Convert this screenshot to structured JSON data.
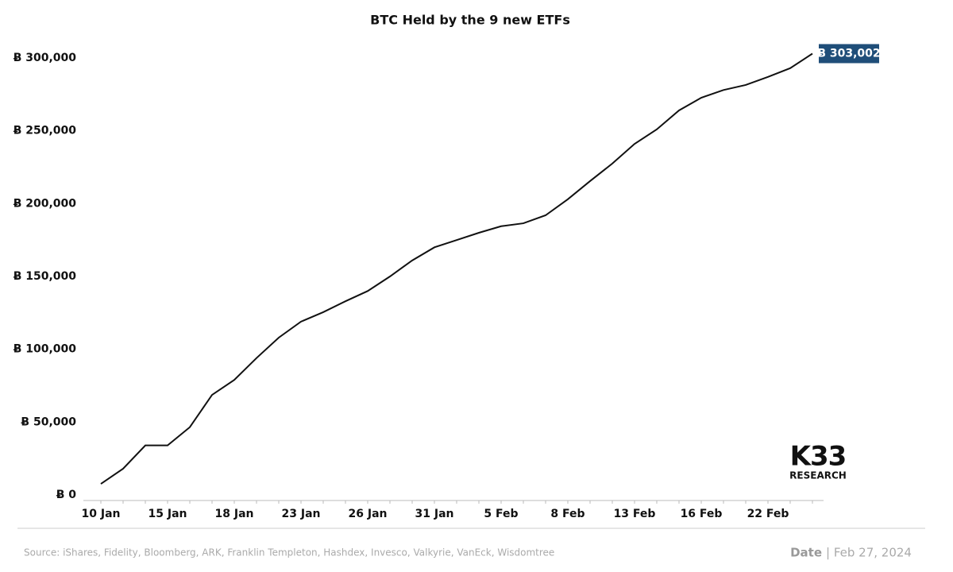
{
  "chart_data": {
    "type": "line",
    "title": "BTC Held by the 9 new ETFs",
    "categories": [
      "10 Jan",
      null,
      null,
      "15 Jan",
      null,
      null,
      "18 Jan",
      null,
      null,
      "23 Jan",
      null,
      null,
      "26 Jan",
      null,
      null,
      "31 Jan",
      null,
      null,
      "5 Feb",
      null,
      null,
      "8 Feb",
      null,
      null,
      "13 Feb",
      null,
      null,
      "16 Feb",
      null,
      null,
      "22 Feb",
      null,
      null
    ],
    "series": [
      {
        "name": "BTC Held",
        "color": "#111111",
        "values": [
          7600,
          18000,
          34000,
          34000,
          46500,
          68700,
          79000,
          94000,
          108000,
          119000,
          125500,
          133000,
          140000,
          150000,
          161000,
          170000,
          175000,
          180000,
          184500,
          186500,
          192000,
          203000,
          215500,
          227500,
          241000,
          251000,
          264000,
          272700,
          278000,
          281500,
          287000,
          293000,
          303002
        ],
        "value_labels": [
          null,
          null,
          null,
          null,
          null,
          null,
          null,
          null,
          null,
          null,
          null,
          null,
          null,
          null,
          null,
          null,
          null,
          null,
          null,
          null,
          null,
          null,
          null,
          null,
          null,
          null,
          null,
          null,
          null,
          null,
          null,
          null,
          "Ƀ 303,002"
        ]
      }
    ],
    "ylim": [
      0,
      300000
    ],
    "yticks": [
      {
        "value": 0,
        "label": "Ƀ 0"
      },
      {
        "value": 50000,
        "label": "Ƀ 50,000"
      },
      {
        "value": 100000,
        "label": "Ƀ 100,000"
      },
      {
        "value": 150000,
        "label": "Ƀ 150,000"
      },
      {
        "value": 200000,
        "label": "Ƀ 200,000"
      },
      {
        "value": 250000,
        "label": "Ƀ 250,000"
      },
      {
        "value": 300000,
        "label": "Ƀ 300,000"
      }
    ],
    "grid": false,
    "logo": {
      "name": "K33",
      "subtitle": "RESEARCH"
    },
    "source": "Source:  iShares, Fidelity, Bloomberg, ARK, Franklin Templeton, Hashdex, Invesco, Valkyrie, VanEck, Wisdomtree",
    "date_label": "Date",
    "date": "| Feb 27, 2024"
  }
}
